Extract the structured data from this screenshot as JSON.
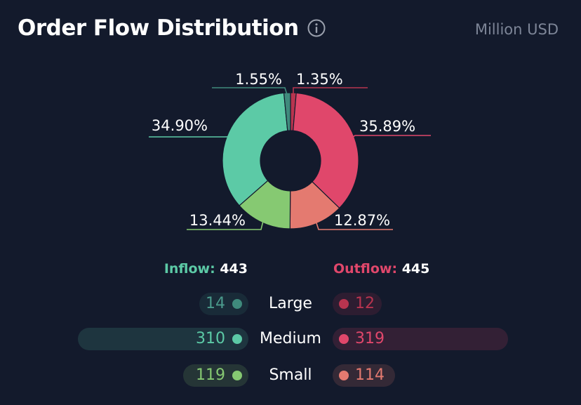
{
  "header": {
    "title": "Order Flow Distribution",
    "unit": "Million USD"
  },
  "chart_data": {
    "type": "pie",
    "slices": [
      {
        "label": "Outflow Large",
        "percent": 1.35,
        "percent_label": "1.35%",
        "color": "#b8344f"
      },
      {
        "label": "Outflow Medium",
        "percent": 35.89,
        "percent_label": "35.89%",
        "color": "#e0476b"
      },
      {
        "label": "Outflow Small",
        "percent": 12.87,
        "percent_label": "12.87%",
        "color": "#e47a70"
      },
      {
        "label": "Inflow Small",
        "percent": 13.44,
        "percent_label": "13.44%",
        "color": "#86c972"
      },
      {
        "label": "Inflow Medium",
        "percent": 34.9,
        "percent_label": "34.90%",
        "color": "#5ccaa6"
      },
      {
        "label": "Inflow Large",
        "percent": 1.55,
        "percent_label": "1.55%",
        "color": "#3f8a7c"
      }
    ]
  },
  "summary": {
    "inflow_label": "Inflow:",
    "inflow_value": "443",
    "outflow_label": "Outflow:",
    "outflow_value": "445"
  },
  "rows": [
    {
      "label": "Large",
      "inflow": 14,
      "inflow_text": "14",
      "outflow": 12,
      "outflow_text": "12",
      "inflow_color": "#3f8a7c",
      "outflow_color": "#b8344f",
      "inflow_text_color": "#4a9a8c",
      "outflow_text_color": "#b8344f"
    },
    {
      "label": "Medium",
      "inflow": 310,
      "inflow_text": "310",
      "outflow": 319,
      "outflow_text": "319",
      "inflow_color": "#5ccaa6",
      "outflow_color": "#e0476b",
      "inflow_text_color": "#5ccaa6",
      "outflow_text_color": "#e0476b"
    },
    {
      "label": "Small",
      "inflow": 119,
      "inflow_text": "119",
      "outflow": 114,
      "outflow_text": "114",
      "inflow_color": "#86c972",
      "outflow_color": "#e47a70",
      "inflow_text_color": "#86c972",
      "outflow_text_color": "#e47a70"
    }
  ],
  "colors": {
    "background": "#131a2c",
    "muted": "#7d8597"
  }
}
